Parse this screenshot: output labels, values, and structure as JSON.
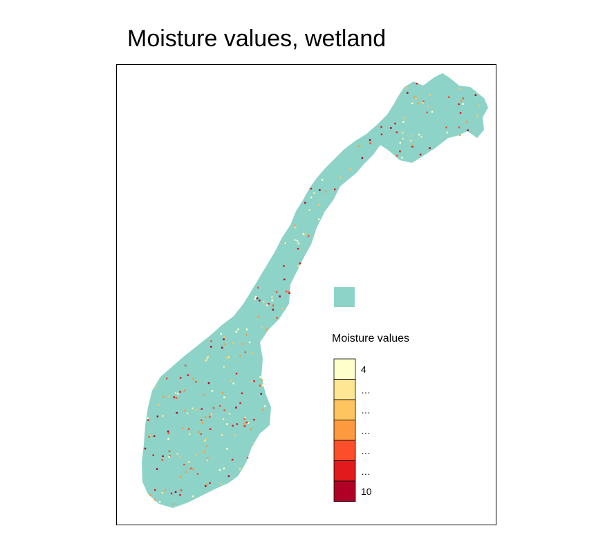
{
  "title": "Moisture values, wetland",
  "land_color": "#8dd3c7",
  "legend": {
    "title": "Moisture values",
    "swatches": [
      {
        "label": "4",
        "color": "#ffffcc"
      },
      {
        "label": "…",
        "color": "#ffe695"
      },
      {
        "label": "…",
        "color": "#fec45f"
      },
      {
        "label": "…",
        "color": "#fd9a3f"
      },
      {
        "label": "…",
        "color": "#fc4e2a"
      },
      {
        "label": "…",
        "color": "#e31a1c"
      },
      {
        "label": "10",
        "color": "#b10026"
      }
    ]
  }
}
